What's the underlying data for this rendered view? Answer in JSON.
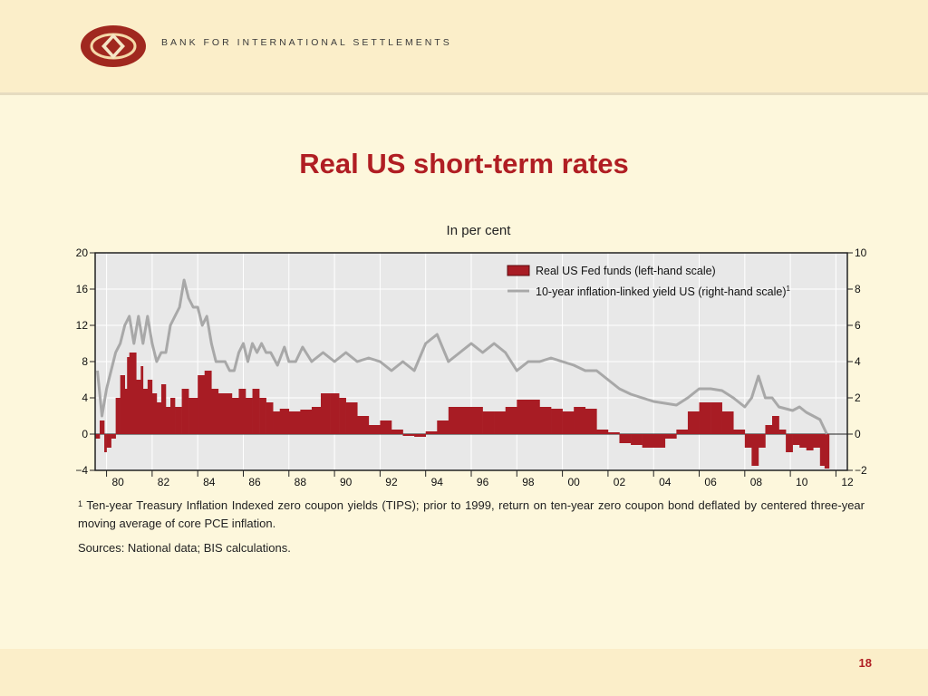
{
  "header": {
    "org_name": "BANK FOR INTERNATIONAL SETTLEMENTS",
    "logo_color": "#a0281f"
  },
  "slide": {
    "title": "Real US short-term rates",
    "subtitle": "In per cent",
    "footnote_marker": "1",
    "footnote": "Ten-year Treasury Inflation Indexed zero coupon yields (TIPS); prior to 1999, return on ten-year zero coupon bond deflated by centered three-year moving average of core PCE inflation.",
    "sources": "Sources: National data; BIS calculations.",
    "page_number": "18"
  },
  "chart_data": {
    "type": "area",
    "x_tick_labels": [
      "80",
      "82",
      "84",
      "86",
      "88",
      "90",
      "92",
      "94",
      "96",
      "98",
      "00",
      "02",
      "04",
      "06",
      "08",
      "10",
      "12"
    ],
    "x_range": [
      1979.5,
      2012.5
    ],
    "left_axis": {
      "ticks": [
        "20",
        "16",
        "12",
        "8",
        "4",
        "0",
        "−4"
      ],
      "range": [
        -4,
        20
      ]
    },
    "right_axis": {
      "ticks": [
        "10",
        "8",
        "6",
        "4",
        "2",
        "0",
        "−2"
      ],
      "range": [
        -2,
        10
      ]
    },
    "grid": true,
    "legend_position": "top-right",
    "series": [
      {
        "name": "Real US Fed funds (left-hand scale)",
        "type": "area",
        "axis": "left",
        "color": "#a81c24",
        "x": [
          1979.5,
          1979.7,
          1979.9,
          1980.0,
          1980.2,
          1980.4,
          1980.6,
          1980.8,
          1980.9,
          1981.0,
          1981.3,
          1981.5,
          1981.6,
          1981.8,
          1982.0,
          1982.2,
          1982.4,
          1982.6,
          1982.8,
          1983.0,
          1983.3,
          1983.6,
          1984.0,
          1984.3,
          1984.6,
          1984.9,
          1985.2,
          1985.5,
          1985.8,
          1986.1,
          1986.4,
          1986.7,
          1987.0,
          1987.3,
          1987.6,
          1988.0,
          1988.5,
          1989.0,
          1989.4,
          1989.8,
          1990.2,
          1990.5,
          1991.0,
          1991.5,
          1992.0,
          1992.5,
          1993.0,
          1993.5,
          1994.0,
          1994.5,
          1995.0,
          1995.5,
          1996.0,
          1996.5,
          1997.0,
          1997.5,
          1998.0,
          1998.5,
          1999.0,
          1999.5,
          2000.0,
          2000.5,
          2001.0,
          2001.5,
          2002.0,
          2002.5,
          2003.0,
          2003.5,
          2004.0,
          2004.5,
          2005.0,
          2005.5,
          2006.0,
          2006.5,
          2007.0,
          2007.5,
          2008.0,
          2008.3,
          2008.6,
          2008.9,
          2009.2,
          2009.5,
          2009.8,
          2010.1,
          2010.4,
          2010.7,
          2011.0,
          2011.3,
          2011.5
        ],
        "values": [
          -0.5,
          1.5,
          -2.0,
          -1.5,
          -0.5,
          4.0,
          6.5,
          5.0,
          8.5,
          9.0,
          6.0,
          7.5,
          5.0,
          6.0,
          4.5,
          3.5,
          5.5,
          3.0,
          4.0,
          3.0,
          5.0,
          4.0,
          6.5,
          7.0,
          5.0,
          4.5,
          4.5,
          4.0,
          5.0,
          4.0,
          5.0,
          4.0,
          3.5,
          2.5,
          2.8,
          2.5,
          2.7,
          3.0,
          4.5,
          4.5,
          4.0,
          3.5,
          2.0,
          1.0,
          1.5,
          0.5,
          -0.2,
          -0.3,
          0.3,
          1.5,
          3.0,
          3.0,
          3.0,
          2.5,
          2.5,
          3.0,
          3.8,
          3.8,
          3.0,
          2.8,
          2.5,
          3.0,
          2.8,
          0.5,
          0.2,
          -1.0,
          -1.2,
          -1.5,
          -1.5,
          -0.5,
          0.5,
          2.5,
          3.5,
          3.5,
          2.5,
          0.5,
          -1.5,
          -3.5,
          -1.5,
          1.0,
          2.0,
          0.5,
          -2.0,
          -1.2,
          -1.5,
          -1.8,
          -1.5,
          -3.5,
          -3.8
        ]
      },
      {
        "name": "10-year inflation-linked yield US (right-hand scale)",
        "name_footnote": "1",
        "type": "line",
        "axis": "right",
        "color": "#a8a8a8",
        "x": [
          1979.6,
          1979.8,
          1980.0,
          1980.2,
          1980.4,
          1980.6,
          1980.8,
          1981.0,
          1981.2,
          1981.4,
          1981.6,
          1981.8,
          1982.0,
          1982.2,
          1982.4,
          1982.6,
          1982.8,
          1983.0,
          1983.2,
          1983.4,
          1983.6,
          1983.8,
          1984.0,
          1984.2,
          1984.4,
          1984.6,
          1984.8,
          1985.0,
          1985.2,
          1985.4,
          1985.6,
          1985.8,
          1986.0,
          1986.2,
          1986.4,
          1986.6,
          1986.8,
          1987.0,
          1987.2,
          1987.5,
          1987.8,
          1988.0,
          1988.3,
          1988.6,
          1989.0,
          1989.5,
          1990.0,
          1990.5,
          1991.0,
          1991.5,
          1992.0,
          1992.5,
          1993.0,
          1993.5,
          1994.0,
          1994.5,
          1995.0,
          1995.5,
          1996.0,
          1996.5,
          1997.0,
          1997.5,
          1998.0,
          1998.5,
          1999.0,
          1999.5,
          2000.0,
          2000.5,
          2001.0,
          2001.5,
          2002.0,
          2002.5,
          2003.0,
          2003.5,
          2004.0,
          2004.5,
          2005.0,
          2005.5,
          2006.0,
          2006.5,
          2007.0,
          2007.5,
          2008.0,
          2008.3,
          2008.6,
          2008.9,
          2009.2,
          2009.5,
          2009.8,
          2010.1,
          2010.4,
          2010.7,
          2011.0,
          2011.3,
          2011.6
        ],
        "values": [
          3.5,
          1.0,
          2.5,
          3.5,
          4.5,
          5.0,
          6.0,
          6.5,
          5.0,
          6.5,
          5.0,
          6.5,
          5.0,
          4.0,
          4.5,
          4.5,
          6.0,
          6.5,
          7.0,
          8.5,
          7.5,
          7.0,
          7.0,
          6.0,
          6.5,
          5.0,
          4.0,
          4.0,
          4.0,
          3.5,
          3.5,
          4.5,
          5.0,
          4.0,
          5.0,
          4.5,
          5.0,
          4.5,
          4.5,
          3.8,
          4.8,
          4.0,
          4.0,
          4.8,
          4.0,
          4.5,
          4.0,
          4.5,
          4.0,
          4.2,
          4.0,
          3.5,
          4.0,
          3.5,
          5.0,
          5.5,
          4.0,
          4.5,
          5.0,
          4.5,
          5.0,
          4.5,
          3.5,
          4.0,
          4.0,
          4.2,
          4.0,
          3.8,
          3.5,
          3.5,
          3.0,
          2.5,
          2.2,
          2.0,
          1.8,
          1.7,
          1.6,
          2.0,
          2.5,
          2.5,
          2.4,
          2.0,
          1.5,
          2.0,
          3.2,
          2.0,
          2.0,
          1.5,
          1.4,
          1.3,
          1.5,
          1.2,
          1.0,
          0.8,
          0.0
        ]
      }
    ]
  }
}
